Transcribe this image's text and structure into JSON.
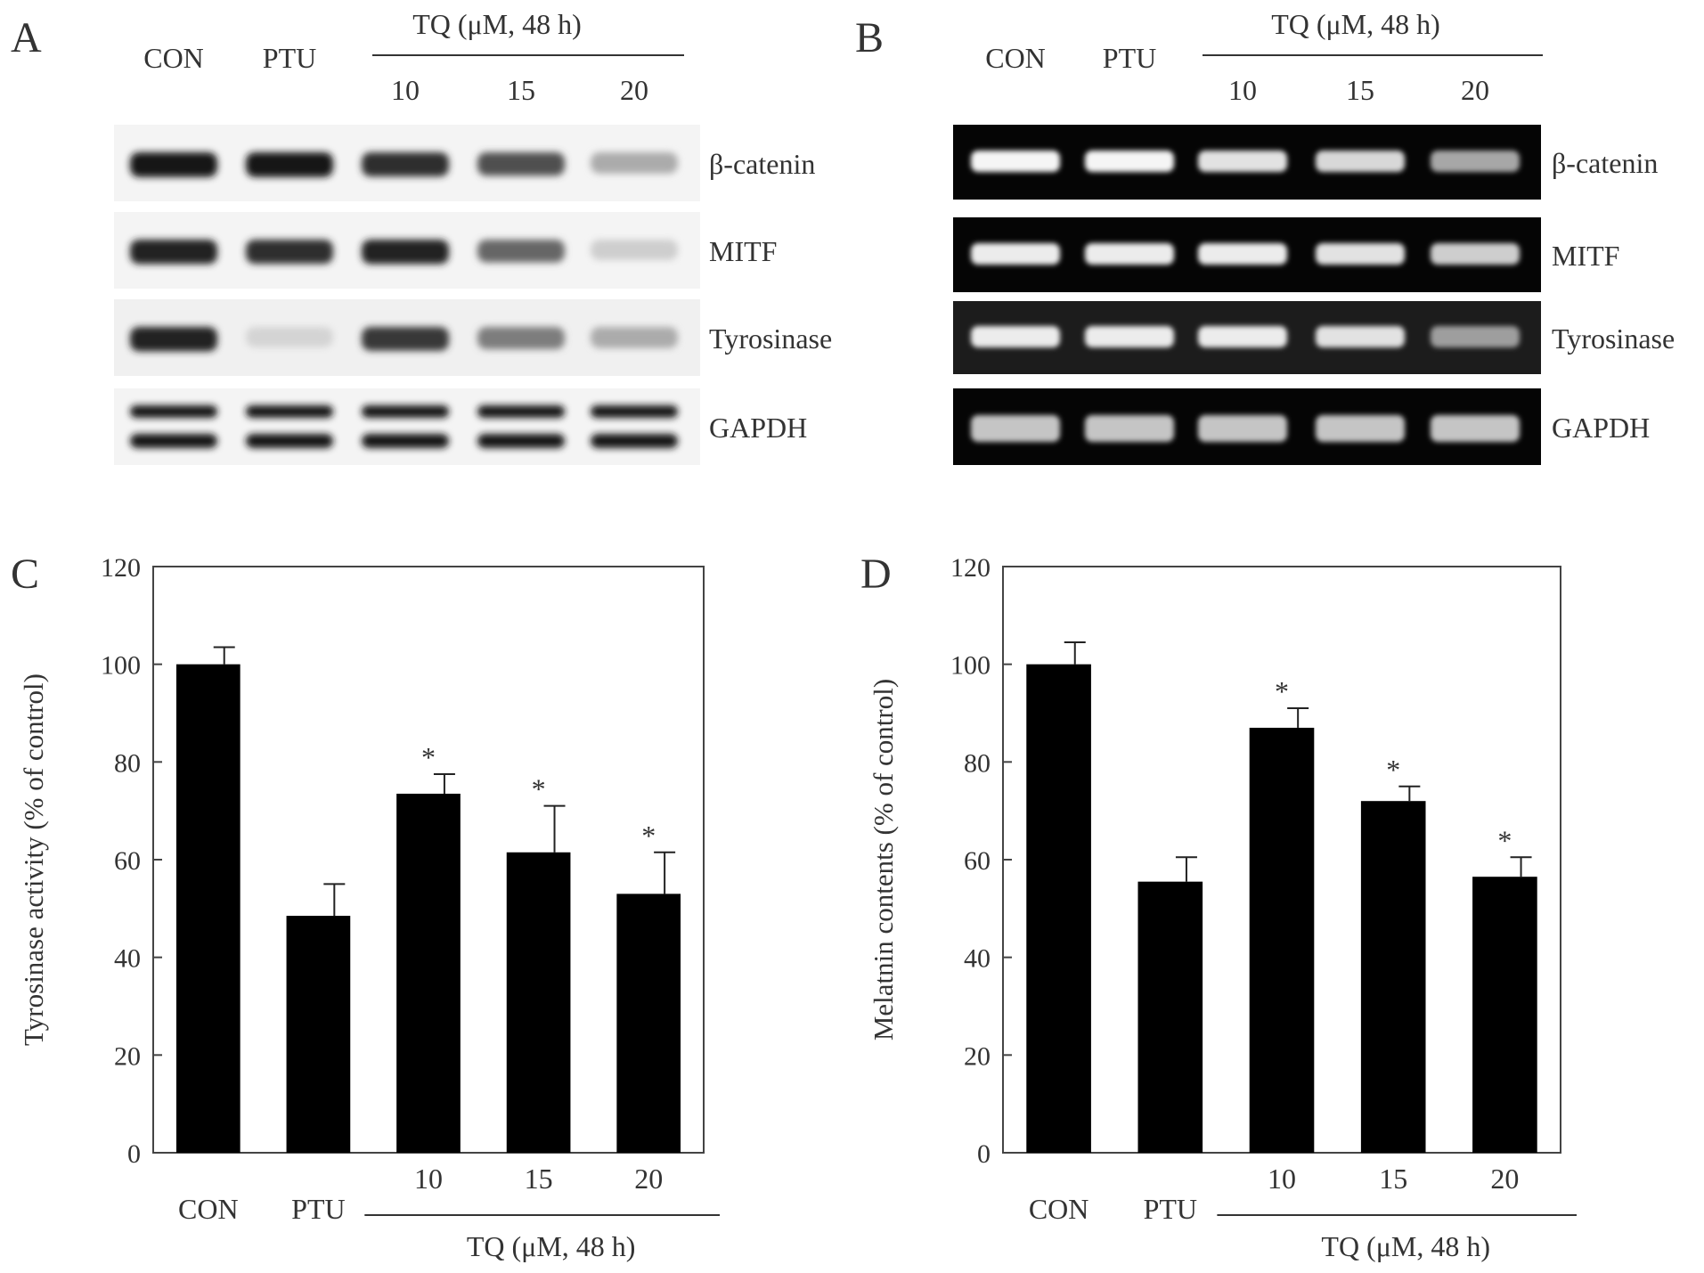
{
  "panels": {
    "A": {
      "letter": "A",
      "lanes": [
        "CON",
        "PTU",
        "10",
        "15",
        "20"
      ],
      "group_label": "TQ (μM, 48 h)",
      "blots": [
        {
          "label": "β-catenin",
          "intensity": [
            0.95,
            0.95,
            0.85,
            0.7,
            0.3
          ]
        },
        {
          "label": "MITF",
          "intensity": [
            0.9,
            0.85,
            0.9,
            0.6,
            0.15
          ]
        },
        {
          "label": "Tyrosinase",
          "intensity": [
            0.9,
            0.12,
            0.8,
            0.5,
            0.3
          ]
        },
        {
          "label": "GAPDH",
          "intensity": [
            0.95,
            0.95,
            0.95,
            0.95,
            0.95
          ],
          "double": true
        }
      ]
    },
    "B": {
      "letter": "B",
      "lanes": [
        "CON",
        "PTU",
        "10",
        "15",
        "20"
      ],
      "group_label": "TQ (μM, 48 h)",
      "gels": [
        {
          "label": "β-catenin",
          "intensity": [
            0.95,
            0.95,
            0.85,
            0.8,
            0.55
          ]
        },
        {
          "label": "MITF",
          "intensity": [
            0.9,
            0.9,
            0.9,
            0.85,
            0.75
          ]
        },
        {
          "label": "Tyrosinase",
          "intensity": [
            0.9,
            0.9,
            0.9,
            0.85,
            0.5
          ]
        },
        {
          "label": "GAPDH",
          "intensity": [
            0.7,
            0.7,
            0.7,
            0.7,
            0.7
          ]
        }
      ]
    }
  },
  "chart_data": [
    {
      "panel": "C",
      "type": "bar",
      "categories": [
        "CON",
        "PTU",
        "10",
        "15",
        "20"
      ],
      "values": [
        100,
        48.5,
        73.5,
        61.5,
        53
      ],
      "errors": [
        3.5,
        6.5,
        4,
        9.5,
        8.5
      ],
      "significant": [
        false,
        false,
        true,
        true,
        true
      ],
      "xlabel": "",
      "group_label": "TQ (μM, 48 h)",
      "ylabel": "Tyrosinase activity (% of control)",
      "ylim": [
        0,
        120
      ],
      "yticks": [
        0,
        20,
        40,
        60,
        80,
        100,
        120
      ],
      "bar_color": "#000000"
    },
    {
      "panel": "D",
      "type": "bar",
      "categories": [
        "CON",
        "PTU",
        "10",
        "15",
        "20"
      ],
      "values": [
        100,
        55.5,
        87,
        72,
        56.5
      ],
      "errors": [
        4.5,
        5,
        4,
        3,
        4
      ],
      "significant": [
        false,
        false,
        true,
        true,
        true
      ],
      "xlabel": "",
      "group_label": "TQ (μM, 48 h)",
      "ylabel": "Melatnin contents (% of control)",
      "ylim": [
        0,
        120
      ],
      "yticks": [
        0,
        20,
        40,
        60,
        80,
        100,
        120
      ],
      "bar_color": "#000000"
    }
  ],
  "panel_letters": {
    "C": "C",
    "D": "D"
  },
  "significance_marker": "*"
}
